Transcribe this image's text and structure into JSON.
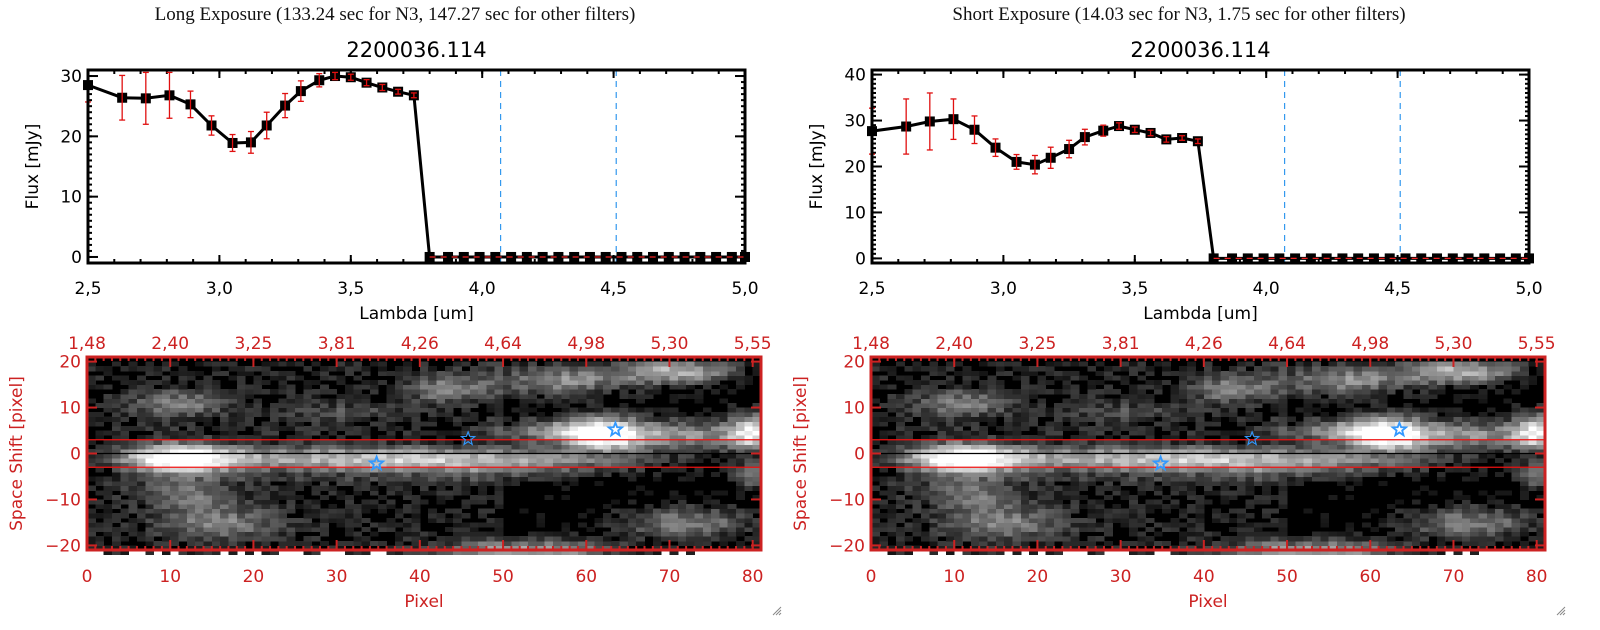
{
  "chart_data": [
    {
      "id": "long",
      "type": "line",
      "exposure_title": "Long Exposure (133.24 sec for N3, 147.27 sec for other filters)",
      "title": "2200036.114",
      "xlabel": "Lambda [um]",
      "ylabel": "Flux [mJy]",
      "xlim": [
        2.5,
        5.0
      ],
      "ylim": [
        -1,
        31
      ],
      "xticks": [
        "2.5",
        "3.0",
        "3.5",
        "4.0",
        "4.5",
        "5.0"
      ],
      "xtick_values": [
        2.5,
        3.0,
        3.5,
        4.0,
        4.5,
        5.0
      ],
      "yticks": [
        "0",
        "10",
        "20",
        "30"
      ],
      "ytick_values": [
        0,
        10,
        20,
        30
      ],
      "vlines": [
        4.07,
        4.51
      ],
      "zero_line": 0,
      "series": [
        {
          "name": "flux",
          "x": [
            2.5,
            2.63,
            2.72,
            2.81,
            2.89,
            2.97,
            3.05,
            3.12,
            3.18,
            3.25,
            3.31,
            3.38,
            3.44,
            3.5,
            3.56,
            3.62,
            3.68,
            3.74,
            3.8,
            3.87,
            3.93,
            3.99,
            4.05,
            4.11,
            4.17,
            4.23,
            4.29,
            4.35,
            4.41,
            4.47,
            4.53,
            4.59,
            4.65,
            4.71,
            4.77,
            4.83,
            4.89,
            4.95,
            5.0
          ],
          "y": [
            28.5,
            26.4,
            26.3,
            26.8,
            25.3,
            21.8,
            18.9,
            19.0,
            21.8,
            25.1,
            27.5,
            29.3,
            30.0,
            29.8,
            28.9,
            28.1,
            27.4,
            26.8,
            0,
            0,
            0,
            0,
            0,
            0,
            0,
            0,
            0,
            0,
            0,
            0,
            0,
            0,
            0,
            0,
            0,
            0,
            0,
            0,
            0
          ],
          "yerr": [
            2.8,
            3.7,
            4.3,
            3.8,
            2.2,
            1.6,
            1.4,
            1.8,
            2.2,
            2.0,
            1.7,
            1.1,
            0.6,
            0.5,
            0.5,
            0.5,
            0.4,
            0.4,
            0,
            0,
            0,
            0,
            0,
            0,
            0,
            0,
            0,
            0,
            0,
            0,
            0,
            0,
            0,
            0,
            0,
            0,
            0,
            0,
            0
          ]
        }
      ],
      "image": {
        "xlabel": "Pixel",
        "ylabel": "Space Shift [pixel]",
        "xlim": [
          0,
          81
        ],
        "ylim": [
          -21,
          21
        ],
        "xticks": [
          "0",
          "10",
          "20",
          "30",
          "40",
          "50",
          "60",
          "70",
          "80"
        ],
        "xtick_values": [
          0,
          10,
          20,
          30,
          40,
          50,
          60,
          70,
          80
        ],
        "yticks": [
          "-20",
          "-10",
          "0",
          "10",
          "20"
        ],
        "ytick_values": [
          -20,
          -10,
          0,
          10,
          20
        ],
        "top_ticks": [
          "1.48",
          "2.40",
          "3.25",
          "3.81",
          "4.26",
          "4.64",
          "4.98",
          "5.30",
          "5.55"
        ],
        "extraction_band": [
          -3,
          3
        ],
        "center": 0,
        "stars": [
          {
            "x": 34.8,
            "y": -2.2,
            "filled": true
          },
          {
            "x": 45.8,
            "y": 3.2,
            "filled": false
          },
          {
            "x": 63.5,
            "y": 5.2,
            "filled": true
          }
        ]
      }
    },
    {
      "id": "short",
      "type": "line",
      "exposure_title": "Short Exposure (14.03 sec for N3, 1.75 sec for other filters)",
      "title": "2200036.114",
      "xlabel": "Lambda [um]",
      "ylabel": "Flux [mJy]",
      "xlim": [
        2.5,
        5.0
      ],
      "ylim": [
        -1,
        41
      ],
      "xticks": [
        "2.5",
        "3.0",
        "3.5",
        "4.0",
        "4.5",
        "5.0"
      ],
      "xtick_values": [
        2.5,
        3.0,
        3.5,
        4.0,
        4.5,
        5.0
      ],
      "yticks": [
        "0",
        "10",
        "20",
        "30",
        "40"
      ],
      "ytick_values": [
        0,
        10,
        20,
        30,
        40
      ],
      "vlines": [
        4.07,
        4.51
      ],
      "zero_line": 0,
      "series": [
        {
          "name": "flux",
          "x": [
            2.5,
            2.63,
            2.72,
            2.81,
            2.89,
            2.97,
            3.05,
            3.12,
            3.18,
            3.25,
            3.31,
            3.38,
            3.44,
            3.5,
            3.56,
            3.62,
            3.68,
            3.74,
            3.8,
            3.87,
            3.93,
            3.99,
            4.05,
            4.11,
            4.17,
            4.23,
            4.29,
            4.35,
            4.41,
            4.47,
            4.53,
            4.59,
            4.65,
            4.71,
            4.77,
            4.83,
            4.89,
            4.95,
            5.0
          ],
          "y": [
            27.7,
            28.7,
            29.8,
            30.3,
            28.0,
            24.1,
            21.0,
            20.4,
            21.9,
            23.8,
            26.4,
            27.8,
            28.8,
            28.0,
            27.3,
            25.9,
            26.2,
            25.5,
            0,
            0,
            0,
            0,
            0,
            0,
            0,
            0,
            0,
            0,
            0,
            0,
            0,
            0,
            0,
            0,
            0,
            0,
            0,
            0,
            0
          ],
          "yerr": [
            5.0,
            6.0,
            6.2,
            4.4,
            3.0,
            1.9,
            1.6,
            2.0,
            2.3,
            1.9,
            1.7,
            1.2,
            0.7,
            0.6,
            0.6,
            0.6,
            0.5,
            0.5,
            0,
            0,
            0,
            0,
            0,
            0,
            0,
            0,
            0,
            0,
            0,
            0,
            0,
            0,
            0,
            0,
            0,
            0,
            0,
            0,
            0
          ]
        }
      ],
      "image": {
        "xlabel": "Pixel",
        "ylabel": "Space Shift [pixel]",
        "xlim": [
          0,
          81
        ],
        "ylim": [
          -21,
          21
        ],
        "xticks": [
          "0",
          "10",
          "20",
          "30",
          "40",
          "50",
          "60",
          "70",
          "80"
        ],
        "xtick_values": [
          0,
          10,
          20,
          30,
          40,
          50,
          60,
          70,
          80
        ],
        "yticks": [
          "-20",
          "-10",
          "0",
          "10",
          "20"
        ],
        "ytick_values": [
          -20,
          -10,
          0,
          10,
          20
        ],
        "top_ticks": [
          "1.48",
          "2.40",
          "3.25",
          "3.81",
          "4.26",
          "4.64",
          "4.98",
          "5.30",
          "5.55"
        ],
        "extraction_band": [
          -3,
          3
        ],
        "center": 0,
        "stars": [
          {
            "x": 34.8,
            "y": -2.2,
            "filled": true
          },
          {
            "x": 45.8,
            "y": 3.2,
            "filled": false
          },
          {
            "x": 63.5,
            "y": 5.2,
            "filled": true
          }
        ]
      }
    }
  ],
  "colors": {
    "axis": "#000000",
    "errorbar": "#e01010",
    "image_axis": "#cc2222",
    "vline": "#3399ee",
    "star": "#3399ff",
    "band": "#ee1111",
    "zero_dash": "#ee2222"
  }
}
